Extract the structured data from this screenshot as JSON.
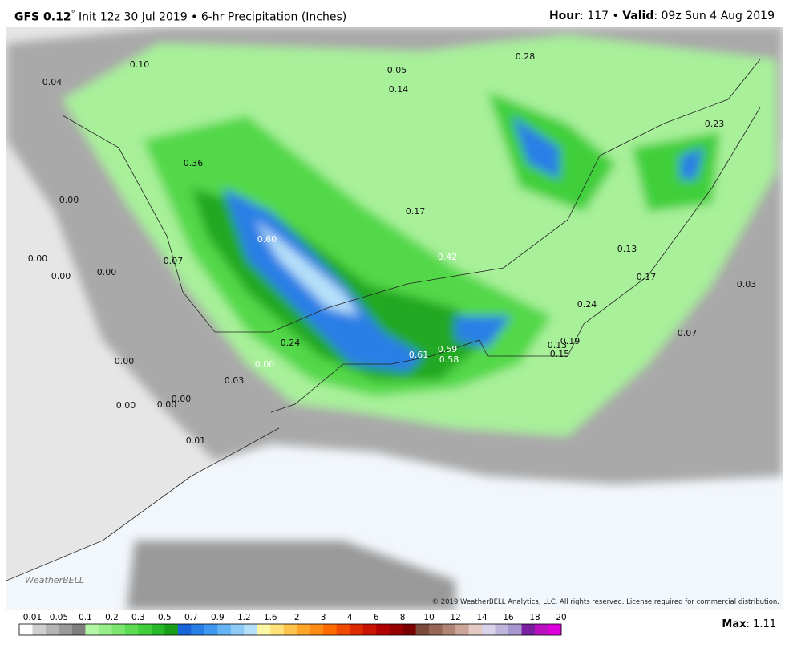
{
  "header": {
    "left": [
      {
        "text": "GFS 0.12",
        "style": "bold"
      },
      {
        "text": "°",
        "style": "sup"
      },
      {
        "text": " Init 12z 30 Jul 2019 • 6-hr Precipitation (Inches)",
        "style": "normal"
      }
    ],
    "right": [
      {
        "text": "Hour",
        "style": "bold"
      },
      {
        "text": ": 117 • ",
        "style": "normal"
      },
      {
        "text": "Valid",
        "style": "bold"
      },
      {
        "text": ": 09z Sun 4 Aug 2019",
        "style": "normal"
      }
    ]
  },
  "map": {
    "labels": [
      "0.10",
      "0.04",
      "0.05",
      "0.14",
      "0.28",
      "0.23",
      "0.36",
      "0.00",
      "0.17",
      "0.60",
      "0.42",
      "0.00",
      "0.07",
      "0.00",
      "0.00",
      "0.13",
      "0.17",
      "0.03",
      "0.24",
      "0.07",
      "0.24",
      "0.13",
      "0.19",
      "0.15",
      "0.61",
      "0.59",
      "0.58",
      "0.00",
      "0.00",
      "0.03",
      "0.00",
      "0.00",
      "0.00",
      "0.01"
    ],
    "logo": "WeatherBELL"
  },
  "copyright": "© 2019 WeatherBELL Analytics, LLC. All rights reserved. License required for commercial distribution.",
  "colorbar": {
    "labels": [
      "0.01",
      "0.05",
      "0.1",
      "0.2",
      "0.3",
      "0.5",
      "0.7",
      "0.9",
      "1.2",
      "1.6",
      "2",
      "3",
      "4",
      "6",
      "8",
      "10",
      "12",
      "14",
      "16",
      "18",
      "20"
    ],
    "colors": [
      "#ffffff",
      "#cfcfcf",
      "#b4b4b4",
      "#9a9a9a",
      "#7f7f7f",
      "#b3f7a6",
      "#98ef8a",
      "#7de66f",
      "#5ddc52",
      "#3fcf3a",
      "#27b927",
      "#1a9e1a",
      "#1864d8",
      "#2a7fe6",
      "#3e98ef",
      "#64b3f4",
      "#8fcbf7",
      "#b6e0f9",
      "#fff7a8",
      "#ffe27a",
      "#ffc44c",
      "#ffa62a",
      "#ff8a14",
      "#ff6a00",
      "#f04a00",
      "#dd2a00",
      "#c81400",
      "#b00000",
      "#960000",
      "#7a0000",
      "#7c4a3a",
      "#966656",
      "#b08474",
      "#caa598",
      "#e2cac2",
      "#d9d2ea",
      "#bfb4dc",
      "#a697ce",
      "#7a1fa0",
      "#bb10c0",
      "#dd00dd"
    ]
  },
  "max": {
    "label": "Max",
    "value": ": 1.11"
  }
}
